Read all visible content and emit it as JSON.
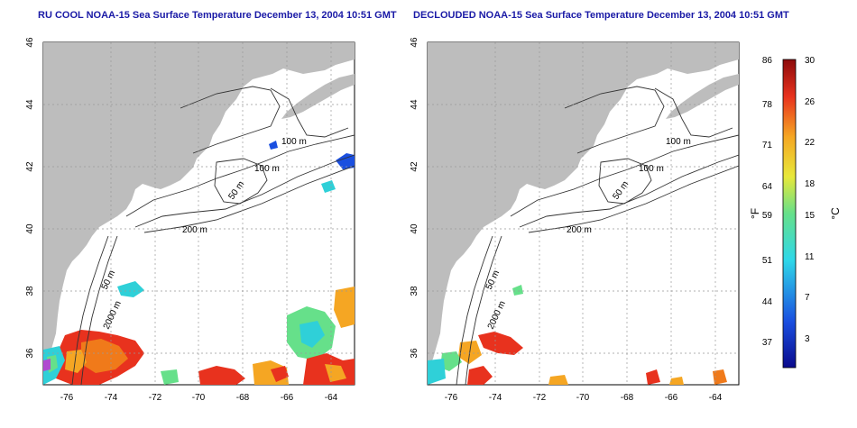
{
  "panels": [
    {
      "title": "RU COOL NOAA-15 Sea Surface Temperature December 13, 2004 10:51 GMT",
      "x_ticks": [
        "-76",
        "-74",
        "-72",
        "-70",
        "-68",
        "-66",
        "-64"
      ],
      "y_ticks": [
        "46",
        "44",
        "42",
        "40",
        "38",
        "36"
      ],
      "contour_labels": [
        "100 m",
        "100 m",
        "50 m",
        "200 m",
        "50 m",
        "2000 m"
      ]
    },
    {
      "title": "DECLOUDED NOAA-15 Sea Surface Temperature December 13, 2004 10:51 GMT",
      "x_ticks": [
        "-76",
        "-74",
        "-72",
        "-70",
        "-68",
        "-66",
        "-64"
      ],
      "y_ticks": [
        "46",
        "44",
        "42",
        "40",
        "38",
        "36"
      ],
      "contour_labels": [
        "100 m",
        "100 m",
        "50 m",
        "200 m",
        "50 m",
        "2000 m"
      ]
    }
  ],
  "colorbar": {
    "fahrenheit_ticks": [
      "86",
      "78",
      "71",
      "64",
      "59",
      "51",
      "44",
      "37"
    ],
    "celsius_ticks": [
      "30",
      "26",
      "22",
      "18",
      "15",
      "11",
      "7",
      "3"
    ],
    "left_unit": "°F",
    "right_unit": "°C"
  },
  "colors": {
    "land": "#bdbdbd",
    "ocean": "#ffffff",
    "title": "#1a1aa6",
    "warm": "#e8321e",
    "mid": "#f5a623",
    "cool": "#2fd0d8",
    "cold": "#1040d0"
  }
}
